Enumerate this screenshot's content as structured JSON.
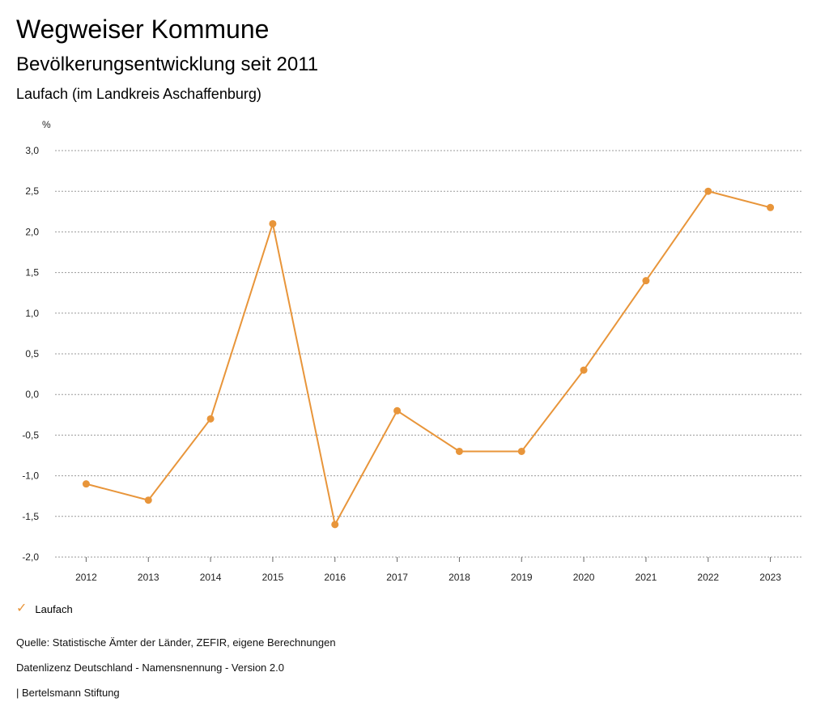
{
  "header": {
    "title": "Wegweiser Kommune",
    "subtitle": "Bevölkerungsentwicklung seit 2011",
    "region": "Laufach (im Landkreis Aschaffenburg)"
  },
  "chart_data": {
    "type": "line",
    "ylabel": "%",
    "x": [
      "2012",
      "2013",
      "2014",
      "2015",
      "2016",
      "2017",
      "2018",
      "2019",
      "2020",
      "2021",
      "2022",
      "2023"
    ],
    "series": [
      {
        "name": "Laufach",
        "color": "#e8953a",
        "values": [
          -1.1,
          -1.3,
          -0.3,
          2.1,
          -1.6,
          -0.2,
          -0.7,
          -0.7,
          0.3,
          1.4,
          2.5,
          2.3
        ]
      }
    ],
    "ylim": [
      -2.0,
      3.0
    ],
    "yticks": [
      "3,0",
      "2,5",
      "2,0",
      "1,5",
      "1,0",
      "0,5",
      "0,0",
      "-0,5",
      "-1,0",
      "-1,5",
      "-2,0"
    ],
    "ytick_values": [
      3.0,
      2.5,
      2.0,
      1.5,
      1.0,
      0.5,
      0.0,
      -0.5,
      -1.0,
      -1.5,
      -2.0
    ],
    "grid": true,
    "legend_position": "bottom-left"
  },
  "legend": {
    "label": "Laufach",
    "icon": "check-icon"
  },
  "footer": {
    "source": "Quelle: Statistische Ämter der Länder, ZEFIR, eigene Berechnungen",
    "license": "Datenlizenz Deutschland - Namensnennung - Version 2.0",
    "publisher": "| Bertelsmann Stiftung"
  }
}
